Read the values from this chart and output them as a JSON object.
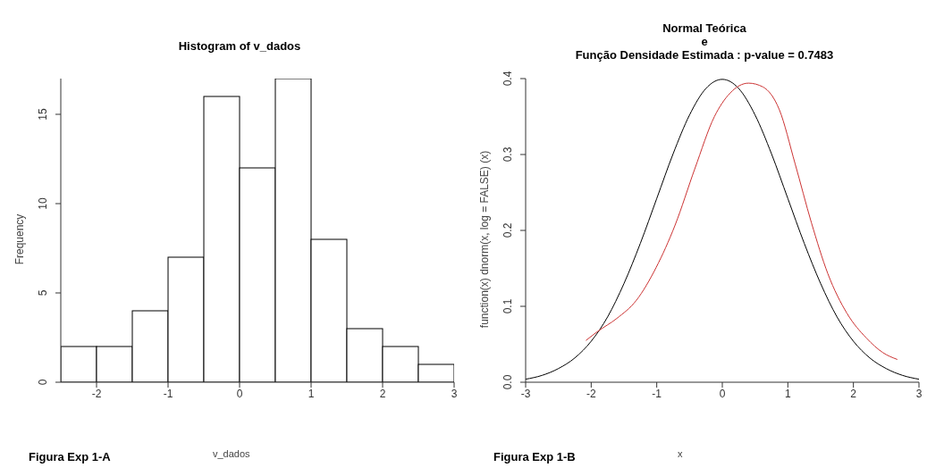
{
  "chart_data": [
    {
      "type": "histogram",
      "title": "Histogram of v_dados",
      "xlabel": "v_dados",
      "ylabel": "Frequency",
      "bins": [
        -2.5,
        -2,
        -1.5,
        -1,
        -0.5,
        0,
        0.5,
        1,
        1.5,
        2,
        2.5,
        3
      ],
      "values": [
        2,
        2,
        4,
        7,
        16,
        12,
        17,
        8,
        3,
        2,
        1
      ],
      "color": "#ffffff",
      "xlim": [
        -2.5,
        3
      ],
      "xticks": [
        -2,
        -1,
        0,
        1,
        2,
        3
      ],
      "ylim": [
        0,
        17
      ],
      "yticks": [
        0,
        5,
        10,
        15
      ],
      "annotations": [
        "Figura Exp 1-A"
      ]
    },
    {
      "type": "line",
      "title": "Normal Teórica\ne\nFunção Densidade Estimada : p-value = 0.7483",
      "xlabel": "x",
      "ylabel": "function(x) dnorm(x, log = FALSE) (x)",
      "xlim": [
        -3,
        3
      ],
      "xticks": [
        -3,
        -2,
        -1,
        0,
        1,
        2,
        3
      ],
      "ylim": [
        0,
        0.4
      ],
      "yticks": [
        {
          "value": 0,
          "label": "0.0"
        },
        0.1,
        0.2,
        0.3,
        0.4
      ],
      "marker": "none",
      "line_style": "solid",
      "series": [
        {
          "color": "#000000",
          "x": [
            -3,
            -2.75,
            -2.5,
            -2.25,
            -2,
            -1.75,
            -1.5,
            -1.25,
            -1,
            -0.75,
            -0.5,
            -0.25,
            0,
            0.25,
            0.5,
            0.75,
            1,
            1.25,
            1.5,
            1.75,
            2,
            2.25,
            2.5,
            2.75,
            3
          ],
          "values": [
            0.004,
            0.009,
            0.018,
            0.032,
            0.054,
            0.086,
            0.13,
            0.183,
            0.242,
            0.301,
            0.352,
            0.387,
            0.399,
            0.387,
            0.352,
            0.301,
            0.242,
            0.183,
            0.13,
            0.086,
            0.054,
            0.032,
            0.018,
            0.009,
            0.004
          ]
        },
        {
          "color": "#cc3333",
          "x": [
            -2.08,
            -1.9,
            -1.61,
            -1.31,
            -1.01,
            -0.72,
            -0.42,
            -0.12,
            0.12,
            0.4,
            0.62,
            0.87,
            1.11,
            1.36,
            1.61,
            1.9,
            2.2,
            2.45,
            2.67
          ],
          "values": [
            0.055,
            0.067,
            0.084,
            0.108,
            0.151,
            0.207,
            0.281,
            0.35,
            0.381,
            0.394,
            0.389,
            0.359,
            0.288,
            0.21,
            0.143,
            0.091,
            0.058,
            0.039,
            0.03
          ]
        }
      ],
      "annotations": [
        "Figura Exp 1-B"
      ]
    }
  ]
}
